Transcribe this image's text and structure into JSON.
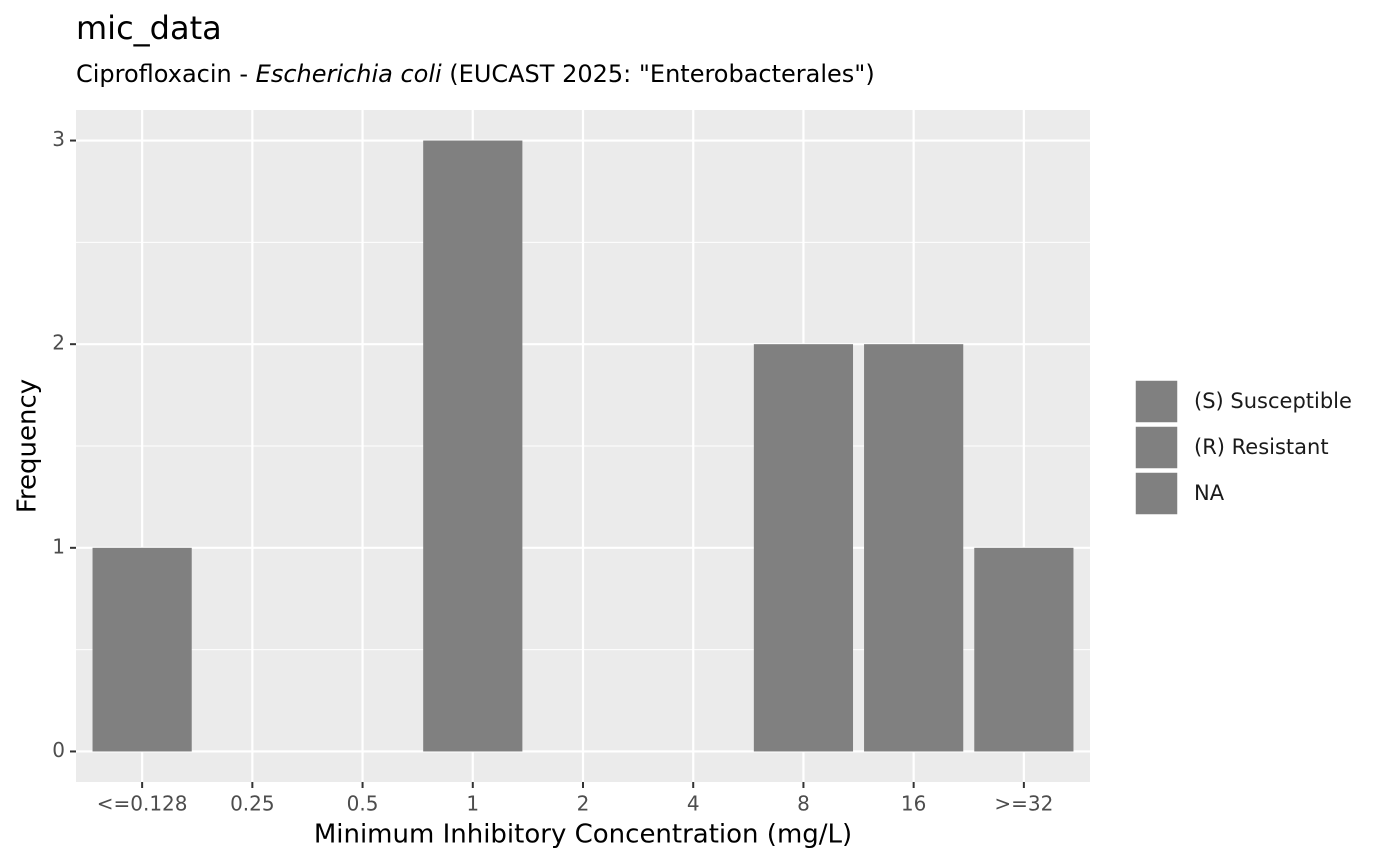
{
  "chart_data": {
    "type": "bar",
    "title": "mic_data",
    "subtitle": [
      "Ciprofloxacin - ",
      "Escherichia coli",
      " (EUCAST 2025: \"Enterobacterales\")"
    ],
    "x_label": "Minimum Inhibitory Concentration (mg/L)",
    "y_label": "Frequency",
    "categories": [
      "<=0.128",
      "0.25",
      "0.5",
      "1",
      "2",
      "4",
      "8",
      "16",
      ">=32"
    ],
    "values": [
      1,
      0,
      0,
      3,
      0,
      0,
      2,
      2,
      1
    ],
    "color": "#808080",
    "ylim": [
      -0.15,
      3.15
    ],
    "yticks": [
      0,
      1,
      2,
      3
    ],
    "grid": true,
    "legend": [
      {
        "name": "(S) Susceptible",
        "color": "#808080"
      },
      {
        "name": "(R) Resistant",
        "color": "#808080"
      },
      {
        "name": "NA",
        "color": "#808080"
      }
    ]
  }
}
